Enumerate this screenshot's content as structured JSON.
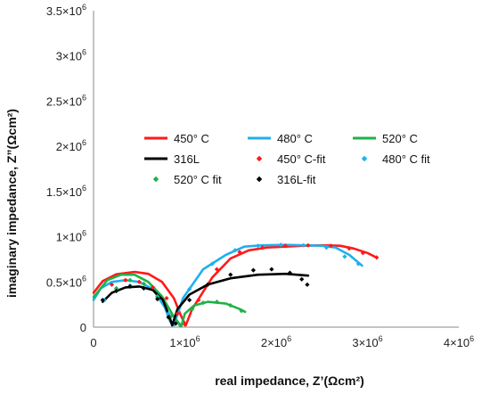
{
  "chart_data": {
    "type": "scatter",
    "title": "",
    "xlabel": "real impedance, Z’(Ωcm²)",
    "ylabel": "imaginary impedance, Z”(Ωcm²)",
    "xlim": [
      0,
      4000000
    ],
    "ylim": [
      0,
      3500000
    ],
    "x_ticks": [
      {
        "value": 0,
        "base": "0",
        "exp": ""
      },
      {
        "value": 1000000,
        "base": "1×10",
        "exp": "6"
      },
      {
        "value": 2000000,
        "base": "2×10",
        "exp": "6"
      },
      {
        "value": 3000000,
        "base": "3×10",
        "exp": "6"
      },
      {
        "value": 4000000,
        "base": "4×10",
        "exp": "6"
      }
    ],
    "y_ticks": [
      {
        "value": 0,
        "base": "0",
        "exp": ""
      },
      {
        "value": 500000,
        "base": "0.5×10",
        "exp": "6"
      },
      {
        "value": 1000000,
        "base": "1×10",
        "exp": "6"
      },
      {
        "value": 1500000,
        "base": "1.5×10",
        "exp": "6"
      },
      {
        "value": 2000000,
        "base": "2×10",
        "exp": "6"
      },
      {
        "value": 2500000,
        "base": "2.5×10",
        "exp": "6"
      },
      {
        "value": 3000000,
        "base": "3×10",
        "exp": "6"
      },
      {
        "value": 3500000,
        "base": "3.5×10",
        "exp": "6"
      }
    ],
    "grid": false,
    "legend_position": "center",
    "legend_columns": 3,
    "series": [
      {
        "name": "450° C",
        "kind": "line",
        "color": "#ff1a1a",
        "x": [
          0,
          100000,
          250000,
          450000,
          600000,
          750000,
          880000,
          960000,
          1010000,
          1080000,
          1300000,
          1500000,
          1700000,
          1900000,
          2100000,
          2300000,
          2500000,
          2700000,
          2850000,
          3000000,
          3080000
        ],
        "y": [
          380000,
          510000,
          585000,
          610000,
          590000,
          500000,
          320000,
          120000,
          20000,
          200000,
          550000,
          760000,
          850000,
          880000,
          890000,
          900000,
          905000,
          900000,
          870000,
          820000,
          780000
        ]
      },
      {
        "name": "480° C",
        "kind": "line",
        "color": "#1fb0ee",
        "x": [
          0,
          80000,
          200000,
          350000,
          500000,
          650000,
          780000,
          840000,
          880000,
          980000,
          1200000,
          1450000,
          1650000,
          1850000,
          2100000,
          2300000,
          2500000,
          2650000,
          2800000,
          2940000
        ],
        "y": [
          300000,
          430000,
          500000,
          520000,
          500000,
          420000,
          220000,
          60000,
          20000,
          320000,
          640000,
          800000,
          890000,
          905000,
          910000,
          905000,
          900000,
          880000,
          800000,
          680000
        ]
      },
      {
        "name": "520° C",
        "kind": "line",
        "color": "#1fb24a",
        "x": [
          0,
          150000,
          300000,
          450000,
          600000,
          750000,
          870000,
          960000,
          1000000,
          1100000,
          1250000,
          1450000,
          1600000,
          1660000
        ],
        "y": [
          330000,
          520000,
          580000,
          580000,
          500000,
          340000,
          130000,
          10000,
          150000,
          240000,
          280000,
          260000,
          200000,
          170000
        ]
      },
      {
        "name": "316L",
        "kind": "line",
        "color": "#000000",
        "x": [
          100000,
          200000,
          350000,
          500000,
          650000,
          760000,
          830000,
          860000,
          920000,
          1050000,
          1250000,
          1500000,
          1800000,
          2100000,
          2350000
        ],
        "y": [
          280000,
          380000,
          440000,
          450000,
          410000,
          300000,
          120000,
          20000,
          200000,
          360000,
          470000,
          540000,
          580000,
          590000,
          570000
        ]
      },
      {
        "name": "450° C-fit",
        "kind": "points",
        "color": "#ff1a1a",
        "x": [
          200000,
          350000,
          500000,
          650000,
          800000,
          920000,
          1000000,
          1150000,
          1350000,
          1600000,
          1850000,
          2100000,
          2350000,
          2600000,
          2800000,
          2950000,
          3100000
        ],
        "y": [
          470000,
          520000,
          500000,
          440000,
          320000,
          150000,
          30000,
          300000,
          640000,
          830000,
          880000,
          900000,
          905000,
          900000,
          870000,
          820000,
          770000
        ]
      },
      {
        "name": "480° C fit",
        "kind": "points",
        "color": "#1fb0ee",
        "x": [
          120000,
          250000,
          400000,
          550000,
          700000,
          820000,
          900000,
          1050000,
          1300000,
          1550000,
          1800000,
          2050000,
          2300000,
          2550000,
          2750000,
          2900000
        ],
        "y": [
          300000,
          420000,
          460000,
          430000,
          340000,
          150000,
          40000,
          420000,
          700000,
          850000,
          900000,
          910000,
          905000,
          880000,
          780000,
          700000
        ]
      },
      {
        "name": "520° C fit",
        "kind": "points",
        "color": "#1fb24a",
        "x": [
          250000,
          400000,
          550000,
          700000,
          850000,
          950000,
          1080000,
          1200000,
          1350000,
          1500000,
          1620000
        ],
        "y": [
          430000,
          520000,
          480000,
          330000,
          120000,
          20000,
          200000,
          270000,
          280000,
          240000,
          180000
        ]
      },
      {
        "name": "316L-fit",
        "kind": "points",
        "color": "#000000",
        "x": [
          100000,
          250000,
          400000,
          550000,
          700000,
          820000,
          900000,
          1050000,
          1250000,
          1500000,
          1750000,
          1950000,
          2150000,
          2280000,
          2340000
        ],
        "y": [
          300000,
          400000,
          450000,
          430000,
          310000,
          110000,
          40000,
          300000,
          470000,
          580000,
          630000,
          640000,
          600000,
          530000,
          470000
        ]
      }
    ]
  }
}
